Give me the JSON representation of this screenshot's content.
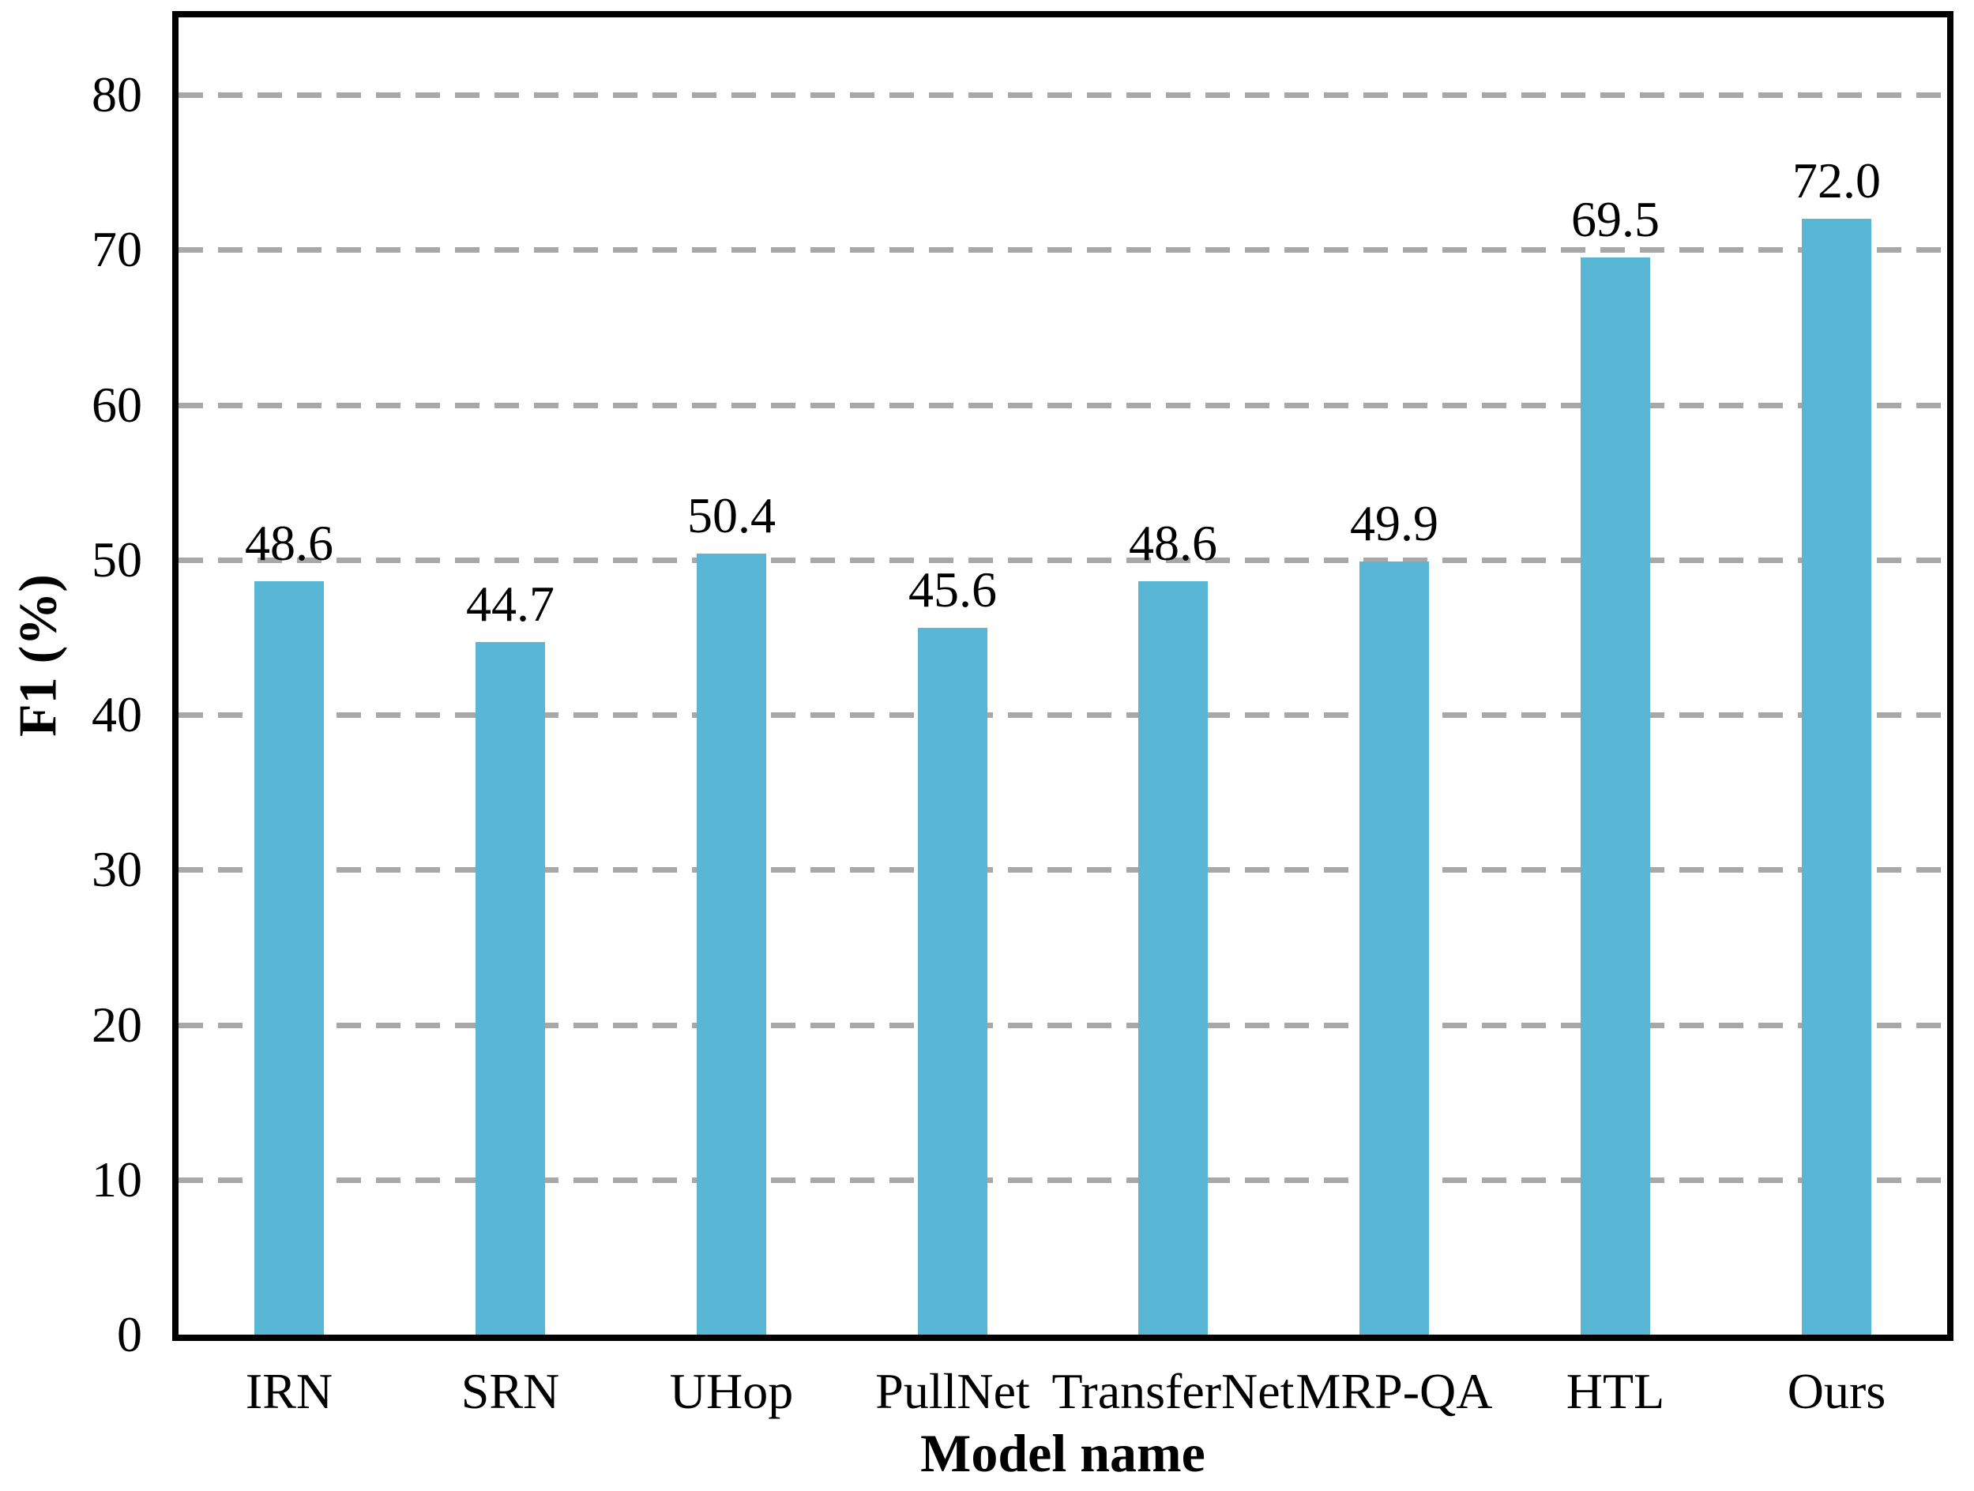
{
  "chart_data": {
    "type": "bar",
    "categories": [
      "IRN",
      "SRN",
      "UHop",
      "PullNet",
      "TransferNet",
      "MRP-QA",
      "HTL",
      "Ours"
    ],
    "values": [
      48.6,
      44.7,
      50.4,
      45.6,
      48.6,
      49.9,
      69.5,
      72.0
    ],
    "value_labels": [
      "48.6",
      "44.7",
      "50.4",
      "45.6",
      "48.6",
      "49.9",
      "69.5",
      "72.0"
    ],
    "title": "",
    "xlabel": "Model name",
    "ylabel": "F1 (%)",
    "ylim": [
      0,
      85
    ],
    "yticks": [
      0,
      10,
      20,
      30,
      40,
      50,
      60,
      70,
      80
    ],
    "grid": "horizontal-dashed",
    "legend": "none",
    "bar_color": "#59B7D5",
    "grid_color": "#A8A8A8",
    "axis_color": "#000000",
    "background": "#FFFFFF"
  }
}
